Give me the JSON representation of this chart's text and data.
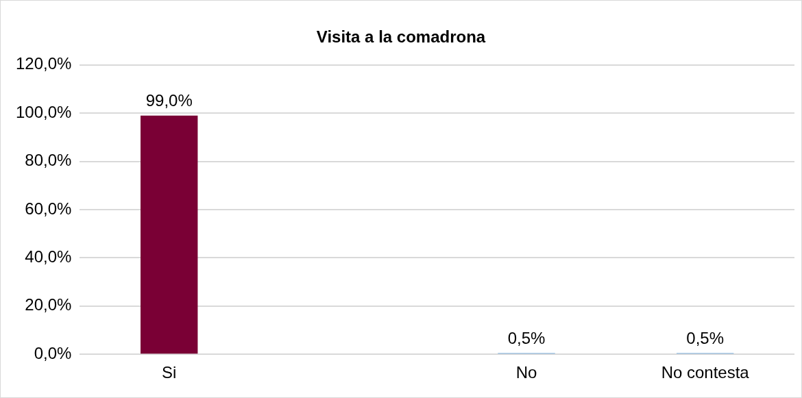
{
  "chart_data": {
    "type": "bar",
    "title": "Visita a la comadrona",
    "categories": [
      "Si",
      null,
      "No",
      "No contesta"
    ],
    "values": [
      99.0,
      null,
      0.5,
      0.5
    ],
    "colors": [
      "#7a0035",
      "#5b9bd5",
      "#5b9bd5",
      "#5b9bd5"
    ],
    "value_labels": [
      "99,0%",
      null,
      "0,5%",
      "0,5%"
    ],
    "ylim": [
      0,
      120
    ],
    "yticks": [
      {
        "value": 0,
        "label": "0,0%"
      },
      {
        "value": 20,
        "label": "20,0%"
      },
      {
        "value": 40,
        "label": "40,0%"
      },
      {
        "value": 60,
        "label": "60,0%"
      },
      {
        "value": 80,
        "label": "80,0%"
      },
      {
        "value": 100,
        "label": "100,0%"
      },
      {
        "value": 120,
        "label": "120,0%"
      }
    ],
    "grid": "y",
    "legend": false
  }
}
